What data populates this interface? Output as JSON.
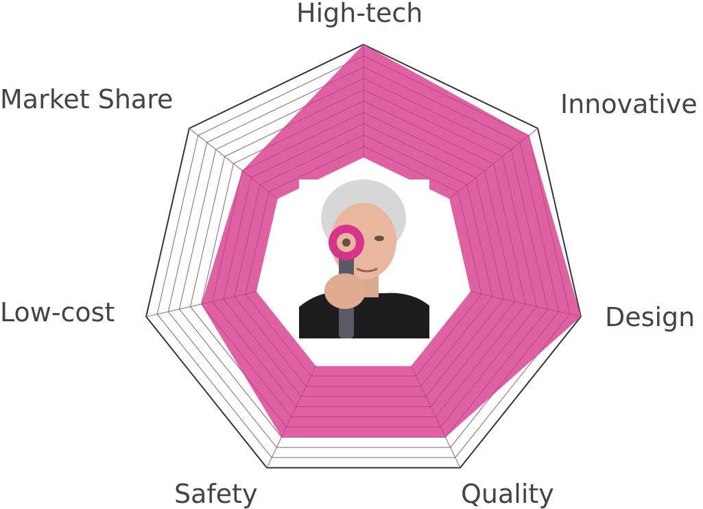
{
  "chart_data": {
    "type": "radar",
    "axes": [
      "High-tech",
      "Innovative",
      "Design",
      "Quality",
      "Safety",
      "Low-cost",
      "Market Share"
    ],
    "series": [
      {
        "values": [
          10,
          9,
          10,
          7,
          7,
          5,
          4
        ]
      }
    ],
    "range": [
      0,
      10
    ],
    "grid_levels": 10,
    "grid": true,
    "center_image": "dyson-photo"
  },
  "colors": {
    "fill": "#e060a4",
    "grid": "#9a9a9a",
    "outline": "#333333"
  }
}
